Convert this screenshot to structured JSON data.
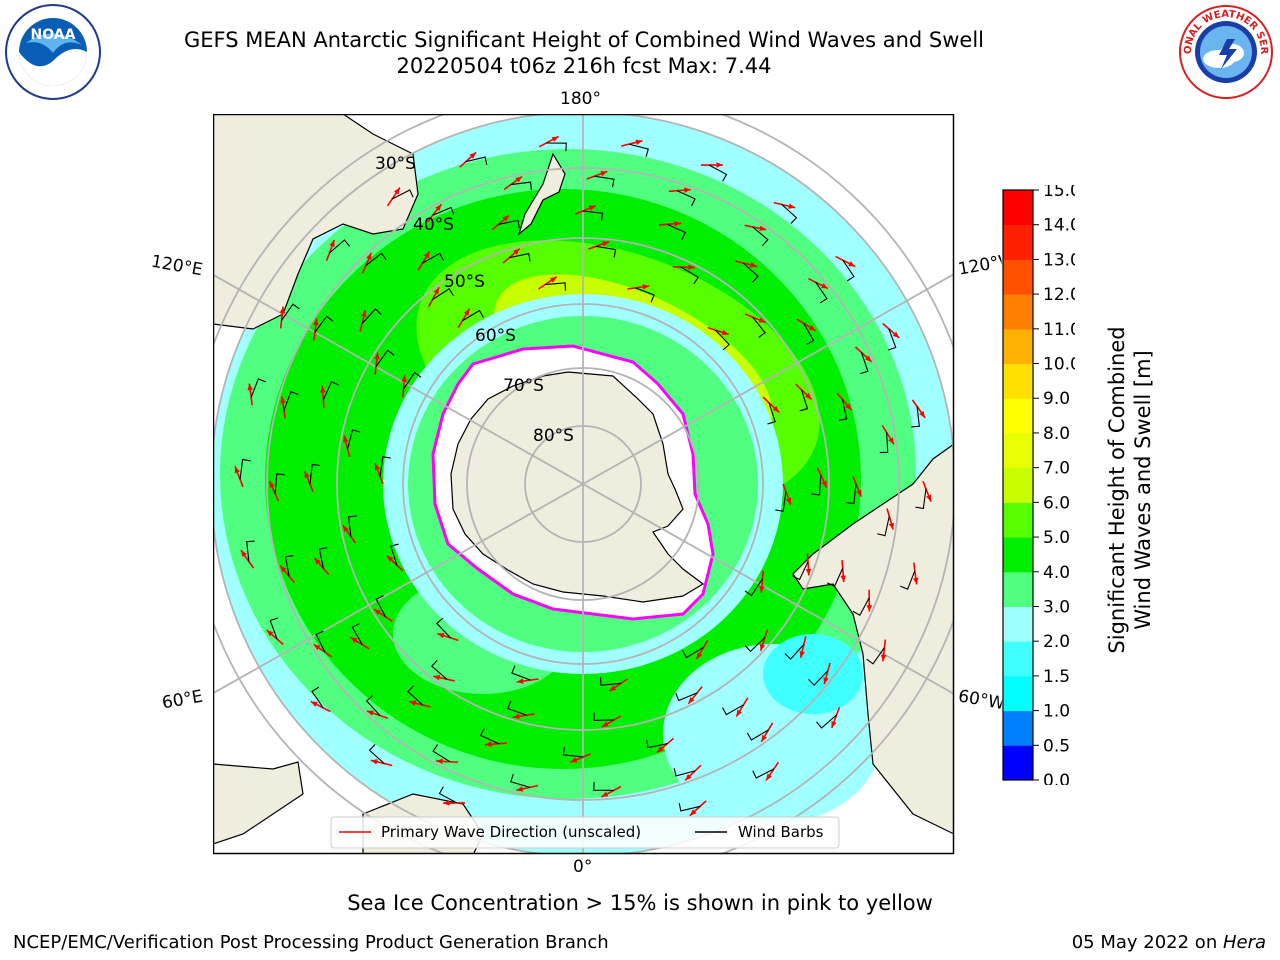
{
  "title_line1": "GEFS MEAN Antarctic Significant Height of Combined Wind Waves and Swell",
  "title_line2": "20220504 t06z 216h fcst   Max: 7.44",
  "note": "Sea Ice Concentration > 15% is shown in pink to yellow",
  "footer_left": "NCEP/EMC/Verification Post Processing Product Generation Branch",
  "footer_date": "05 May 2022 on ",
  "footer_host": "Hera",
  "logo_left": {
    "text": "NOAA",
    "ring_text": "NATIONAL OCEANIC AND ATMOSPHERIC ADMINISTRATION · U.S. DEPARTMENT OF COMMERCE"
  },
  "logo_right": {
    "ring_text": "NATIONAL WEATHER SERVICE"
  },
  "map": {
    "lon_labels": {
      "top": "180°",
      "bottom": "0°",
      "upper_left": "120°E",
      "lower_left": "60°E",
      "upper_right": "120°W",
      "lower_right": "60°W"
    },
    "lat_labels": [
      "30°S",
      "40°S",
      "50°S",
      "60°S",
      "70°S",
      "80°S"
    ]
  },
  "legend": {
    "wave_dir": "Primary Wave Direction (unscaled)",
    "wind_barbs": "Wind Barbs",
    "wave_color": "#ff0000",
    "barb_color": "#000000"
  },
  "colorbar": {
    "label_line1": "Significant Height of Combined",
    "label_line2": "Wind Waves and Swell [m]",
    "ticks": [
      "0.0",
      "0.5",
      "1.0",
      "1.5",
      "2.0",
      "3.0",
      "4.0",
      "5.0",
      "6.0",
      "7.0",
      "8.0",
      "9.0",
      "10.0",
      "11.0",
      "12.0",
      "13.0",
      "14.0",
      "15.0"
    ],
    "colors": [
      "#0000ff",
      "#0080ff",
      "#00ffff",
      "#40ffff",
      "#a0ffff",
      "#50ff80",
      "#00ee00",
      "#55ff00",
      "#c8ff00",
      "#e8ff00",
      "#ffff00",
      "#ffe000",
      "#ffb000",
      "#ff8000",
      "#ff5000",
      "#ff2000",
      "#ff0000"
    ]
  },
  "colors": {
    "land": "#efedde",
    "ice": "#ffffff",
    "ice_edge": "#ff00ff",
    "grid": "#b4b4b4"
  }
}
